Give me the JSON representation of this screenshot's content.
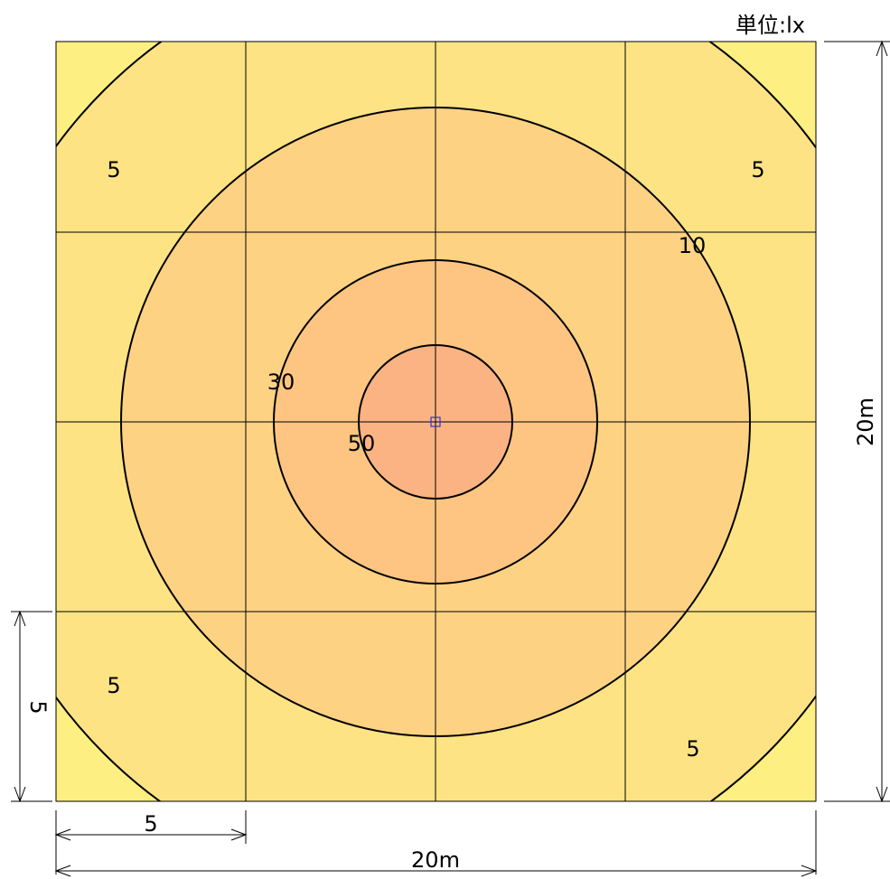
{
  "unit_label": "単位:lx",
  "colors": {
    "zone_lt5": "#fdef82",
    "zone_5_10": "#fde384",
    "zone_10_30": "#fdd283",
    "zone_30_50": "#fdc581",
    "zone_gt50": "#fbb383",
    "contour_line": "#000000",
    "grid_line": "#000000",
    "source_marker": "#3333cc"
  },
  "contour_levels": [
    5,
    10,
    30,
    50
  ],
  "contour_labels": [
    {
      "text": "5"
    },
    {
      "text": "5"
    },
    {
      "text": "5"
    },
    {
      "text": "5"
    },
    {
      "text": "10"
    },
    {
      "text": "30"
    },
    {
      "text": "50"
    }
  ],
  "dimensions": {
    "width_total": "20m",
    "height_total": "20m",
    "width_segment": "5",
    "height_segment": "5"
  }
}
